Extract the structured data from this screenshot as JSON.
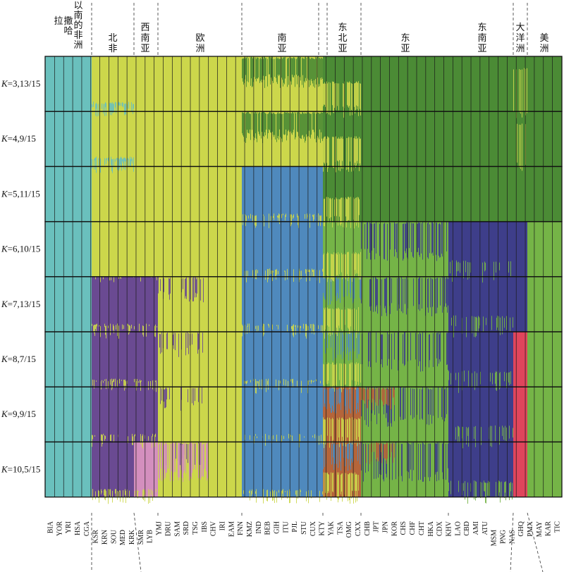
{
  "chart_data": {
    "type": "stacked-bar",
    "title": "",
    "xlabel": "",
    "ylabel": "",
    "ylim": [
      0,
      1
    ],
    "colors": {
      "africa": "#6ac0bd",
      "yellow": "#ccd74b",
      "green": "#4b8b35",
      "lightgreen": "#75b447",
      "blue": "#4f89bd",
      "purple": "#6a4a92",
      "navy": "#3e3e8a",
      "orange": "#b5653a",
      "pink": "#d48fbe",
      "red": "#e0455c"
    },
    "regions": [
      {
        "label": "撒哈拉以南的非洲",
        "span": [
          0,
          4
        ]
      },
      {
        "label": "北非",
        "span": [
          5,
          10
        ]
      },
      {
        "label": "西南亚",
        "span": [
          11,
          13
        ]
      },
      {
        "label": "欧洲",
        "span": [
          14,
          21
        ]
      },
      {
        "label": "南亚",
        "span": [
          22,
          27
        ]
      },
      {
        "label": "东北亚",
        "span": [
          28,
          31
        ]
      },
      {
        "label": "东亚",
        "span": [
          32,
          40
        ]
      },
      {
        "label": "东南亚",
        "span": [
          41,
          45
        ]
      },
      {
        "label": "大洋洲",
        "span": [
          46,
          47
        ]
      },
      {
        "label": "美洲",
        "span": [
          48,
          52
        ]
      }
    ],
    "populations": [
      "BIA",
      "YOR",
      "YRI",
      "HSA",
      "CGA",
      "KSR",
      "KRN",
      "SOU",
      "MED",
      "KRK",
      "SMR",
      "LYB",
      "YMJ",
      "DRU",
      "SAM",
      "SRD",
      "TSG",
      "IBS",
      "CHV",
      "IRI",
      "EAM",
      "FNN",
      "KMZ",
      "IND",
      "BEB",
      "GIH",
      "ITU",
      "PJL",
      "STU",
      "CUX",
      "KTY",
      "YAK",
      "TSA",
      "OMG",
      "CXX",
      "CHB",
      "JPT",
      "JPN",
      "KOR",
      "CHS",
      "CHF",
      "CHT",
      "HKA",
      "CDX",
      "KHV",
      "LAO",
      "CBD",
      "AMI",
      "ATU",
      "MSM",
      "PNG",
      "NAS",
      "GHQ",
      "PMX",
      "MAY",
      "KAR",
      "TIC"
    ],
    "components_by_region": {
      "K=3": [
        "africa",
        "yellow",
        "yellow",
        "yellow",
        "yellow",
        "green",
        "green",
        "green",
        "green",
        "green"
      ],
      "K=4": [
        "africa",
        "yellow",
        "yellow",
        "yellow",
        "yellow",
        "green",
        "green",
        "green",
        "green",
        "green"
      ],
      "K=5": [
        "africa",
        "yellow",
        "yellow",
        "yellow",
        "blue",
        "green",
        "green",
        "green",
        "green",
        "green"
      ],
      "K=6": [
        "africa",
        "yellow",
        "yellow",
        "yellow",
        "blue",
        "lightgreen",
        "lightgreen",
        "navy",
        "navy",
        "lightgreen"
      ],
      "K=7": [
        "africa",
        "purple",
        "purple",
        "yellow",
        "blue",
        "lightgreen",
        "lightgreen",
        "navy",
        "navy",
        "lightgreen"
      ],
      "K=8": [
        "africa",
        "purple",
        "purple",
        "yellow",
        "blue",
        "lightgreen",
        "lightgreen",
        "navy",
        "red",
        "lightgreen"
      ],
      "K=9": [
        "africa",
        "purple",
        "purple",
        "yellow",
        "blue",
        "orange",
        "lightgreen",
        "navy",
        "red",
        "lightgreen"
      ],
      "K=10": [
        "africa",
        "purple",
        "pink",
        "yellow",
        "blue",
        "orange",
        "lightgreen",
        "navy",
        "red",
        "lightgreen"
      ]
    },
    "k_labels": [
      {
        "k": "K",
        "rest": "=3,13/15"
      },
      {
        "k": "K",
        "rest": "=4,9/15"
      },
      {
        "k": "K",
        "rest": "=5,11/15"
      },
      {
        "k": "K",
        "rest": "=6,10/15"
      },
      {
        "k": "K",
        "rest": "=7,13/15"
      },
      {
        "k": "K",
        "rest": "=8,7/15"
      },
      {
        "k": "K",
        "rest": "=9,9/15"
      },
      {
        "k": "K",
        "rest": "=10,5/15"
      }
    ]
  }
}
